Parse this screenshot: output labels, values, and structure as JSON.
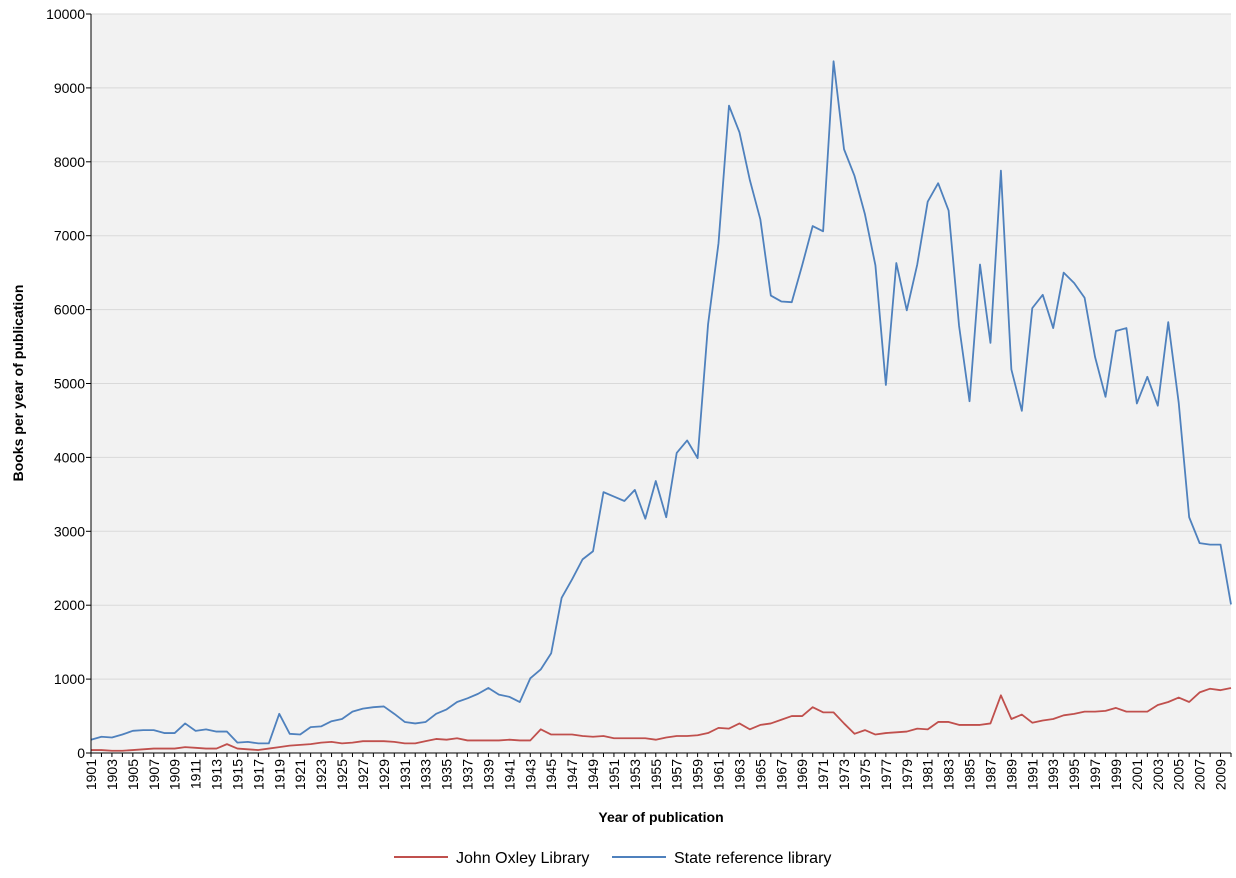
{
  "chart_data": {
    "type": "line",
    "title": "",
    "xlabel": "Year of publication",
    "ylabel": "Books per year of publication",
    "ylim": [
      0,
      10000
    ],
    "yticks": [
      0,
      1000,
      2000,
      3000,
      4000,
      5000,
      6000,
      7000,
      8000,
      9000,
      10000
    ],
    "grid": true,
    "legend_position": "bottom-center",
    "categories": [
      "1901",
      "1902",
      "1903",
      "1904",
      "1905",
      "1906",
      "1907",
      "1908",
      "1909",
      "1910",
      "1911",
      "1912",
      "1913",
      "1914",
      "1915",
      "1916",
      "1917",
      "1918",
      "1919",
      "1920",
      "1921",
      "1922",
      "1923",
      "1924",
      "1925",
      "1926",
      "1927",
      "1928",
      "1929",
      "1930",
      "1931",
      "1932",
      "1933",
      "1934",
      "1935",
      "1936",
      "1937",
      "1938",
      "1939",
      "1940",
      "1941",
      "1942",
      "1943",
      "1944",
      "1945",
      "1946",
      "1947",
      "1948",
      "1949",
      "1950",
      "1951",
      "1952",
      "1953",
      "1954",
      "1955",
      "1956",
      "1957",
      "1958",
      "1959",
      "1960",
      "1961",
      "1962",
      "1963",
      "1964",
      "1965",
      "1966",
      "1967",
      "1968",
      "1969",
      "1970",
      "1971",
      "1972",
      "1973",
      "1974",
      "1975",
      "1976",
      "1977",
      "1978",
      "1979",
      "1980",
      "1981",
      "1982",
      "1983",
      "1984",
      "1985",
      "1986",
      "1987",
      "1988",
      "1989",
      "1990",
      "1991",
      "1992",
      "1993",
      "1994",
      "1995",
      "1996",
      "1997",
      "1998",
      "1999",
      "2000",
      "2001",
      "2002",
      "2003",
      "2004",
      "2005",
      "2006",
      "2007",
      "2008",
      "2009",
      "2010"
    ],
    "tick_labels": [
      "1901",
      "1903",
      "1905",
      "1907",
      "1909",
      "1911",
      "1913",
      "1915",
      "1917",
      "1919",
      "1921",
      "1923",
      "1925",
      "1927",
      "1929",
      "1931",
      "1933",
      "1935",
      "1937",
      "1939",
      "1941",
      "1943",
      "1945",
      "1947",
      "1949",
      "1951",
      "1953",
      "1955",
      "1957",
      "1959",
      "1961",
      "1963",
      "1965",
      "1967",
      "1969",
      "1971",
      "1973",
      "1975",
      "1977",
      "1979",
      "1981",
      "1983",
      "1985",
      "1987",
      "1989",
      "1991",
      "1993",
      "1995",
      "1997",
      "1999",
      "2001",
      "2003",
      "2005",
      "2007",
      "2009"
    ],
    "series": [
      {
        "name": "John Oxley Library",
        "color": "#c0504d",
        "values": [
          40,
          40,
          30,
          30,
          40,
          50,
          60,
          60,
          60,
          80,
          70,
          60,
          60,
          120,
          60,
          50,
          40,
          60,
          80,
          100,
          110,
          120,
          140,
          150,
          130,
          140,
          160,
          160,
          160,
          150,
          130,
          130,
          160,
          190,
          180,
          200,
          170,
          170,
          170,
          170,
          180,
          170,
          170,
          320,
          250,
          250,
          250,
          230,
          220,
          230,
          200,
          200,
          200,
          200,
          180,
          210,
          230,
          230,
          240,
          270,
          340,
          330,
          400,
          320,
          380,
          400,
          450,
          500,
          500,
          620,
          550,
          550,
          400,
          260,
          310,
          250,
          270,
          280,
          290,
          330,
          320,
          420,
          420,
          380,
          380,
          380,
          400,
          780,
          460,
          520,
          410,
          440,
          460,
          510,
          530,
          560,
          560,
          570,
          610,
          560,
          560,
          560,
          650,
          690,
          750,
          690,
          820,
          870,
          850,
          880
        ]
      },
      {
        "name": "State reference library",
        "color": "#4f81bd",
        "values": [
          180,
          220,
          210,
          250,
          300,
          310,
          310,
          270,
          270,
          400,
          300,
          320,
          290,
          290,
          140,
          150,
          130,
          130,
          530,
          260,
          250,
          350,
          360,
          430,
          460,
          560,
          600,
          620,
          630,
          530,
          420,
          400,
          420,
          530,
          590,
          690,
          740,
          800,
          880,
          790,
          760,
          690,
          1010,
          1130,
          1350,
          2100,
          2350,
          2620,
          2730,
          3530,
          3470,
          3410,
          3560,
          3170,
          3680,
          3190,
          4060,
          4230,
          3990,
          5800,
          6900,
          8760,
          8400,
          7750,
          7220,
          6190,
          6110,
          6100,
          6600,
          7130,
          7060,
          9360,
          8170,
          7810,
          7290,
          6600,
          4980,
          6630,
          5990,
          6610,
          7460,
          7710,
          7340,
          5780,
          4760,
          6610,
          5550,
          7880,
          5190,
          4630,
          6020,
          6200,
          5750,
          6500,
          6360,
          6160,
          5360,
          4820,
          5710,
          5750,
          4730,
          5090,
          4700,
          5830,
          4740,
          3190,
          2840,
          2820,
          2820,
          2010
        ]
      }
    ]
  }
}
